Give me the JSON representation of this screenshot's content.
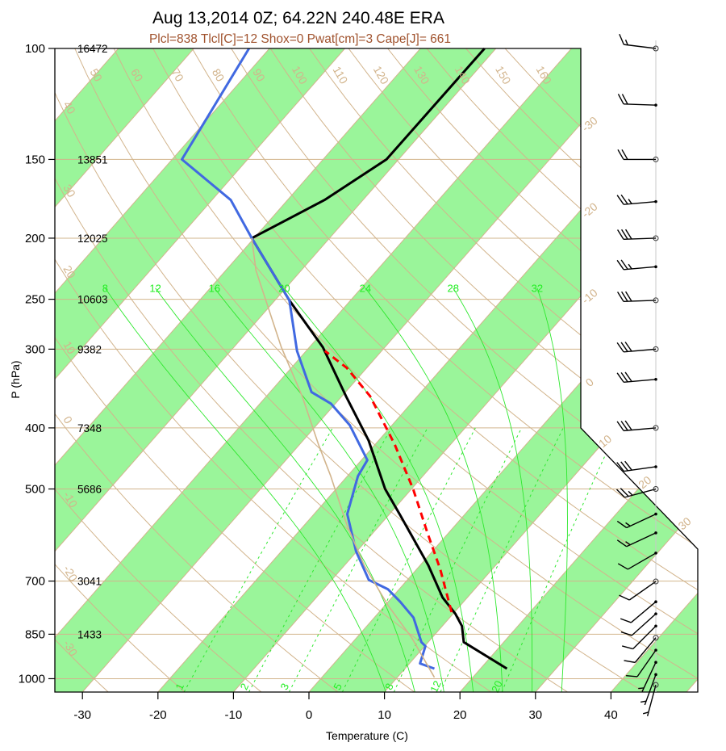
{
  "title": "Aug 13,2014 0Z; 64.22N 240.48E ERA",
  "subtitle": "Plcl=838 Tlcl[C]=12 Shox=0 Pwat[cm]=3 Cape[J]= 661",
  "colors": {
    "band": "#9af59a",
    "tan": "#d2b48c",
    "moist": "#2ee82e",
    "temp": "#000000",
    "dew": "#4169e1",
    "parcel": "#ff0000",
    "env2": "#d2b48c"
  },
  "chart_data": {
    "type": "line",
    "title": "Aug 13,2014 0Z; 64.22N 240.48E ERA",
    "xlabel": "Temperature (C)",
    "ylabel": "P (hPa)",
    "xlim": [
      -33.6,
      51.5
    ],
    "ylim": [
      1050,
      100
    ],
    "x_ticks": [
      "-30",
      "-20",
      "-10",
      "0",
      "10",
      "20",
      "30",
      "40"
    ],
    "x_tick_values": [
      -30,
      -20,
      -10,
      0,
      10,
      20,
      30,
      40
    ],
    "pressure_levels": [
      {
        "p": 100,
        "label": "100",
        "height": "16472"
      },
      {
        "p": 150,
        "label": "150",
        "height": "13851"
      },
      {
        "p": 200,
        "label": "200",
        "height": "12025"
      },
      {
        "p": 250,
        "label": "250",
        "height": "10603"
      },
      {
        "p": 300,
        "label": "300",
        "height": "9382"
      },
      {
        "p": 400,
        "label": "400",
        "height": "7348"
      },
      {
        "p": 500,
        "label": "500",
        "height": "5686"
      },
      {
        "p": 700,
        "label": "700",
        "height": "3041"
      },
      {
        "p": 850,
        "label": "850",
        "height": "1433"
      },
      {
        "p": 1000,
        "label": "1000",
        "height": ""
      }
    ],
    "series": [
      {
        "name": "temperature",
        "color": "#000000",
        "points": [
          [
            964,
            23.5
          ],
          [
            875,
            14.7
          ],
          [
            825,
            12.6
          ],
          [
            789,
            10.3
          ],
          [
            743,
            6.7
          ],
          [
            661,
            1.1
          ],
          [
            553,
            -8.2
          ],
          [
            500,
            -13.5
          ],
          [
            419,
            -21.3
          ],
          [
            356,
            -29.5
          ],
          [
            298,
            -38.2
          ],
          [
            251,
            -48.1
          ],
          [
            200,
            -60.3
          ],
          [
            174,
            -55.1
          ],
          [
            150,
            -51.6
          ],
          [
            100,
            -51.5
          ]
        ]
      },
      {
        "name": "dewpoint",
        "color": "#4169e1",
        "points": [
          [
            964,
            13.9
          ],
          [
            946,
            11.4
          ],
          [
            888,
            10.1
          ],
          [
            875,
            9.1
          ],
          [
            800,
            5.2
          ],
          [
            755,
            1.6
          ],
          [
            721,
            -1.5
          ],
          [
            697,
            -5.1
          ],
          [
            628,
            -10.1
          ],
          [
            548,
            -15.6
          ],
          [
            477,
            -18.6
          ],
          [
            450,
            -19.2
          ],
          [
            396,
            -25.6
          ],
          [
            366,
            -30.6
          ],
          [
            351,
            -34.5
          ],
          [
            302,
            -41.2
          ],
          [
            251,
            -48.1
          ],
          [
            200,
            -60.3
          ],
          [
            174,
            -67.5
          ],
          [
            150,
            -78.7
          ],
          [
            100,
            -82.7
          ]
        ]
      },
      {
        "name": "parcel",
        "color": "#ff0000",
        "dashed": true,
        "points": [
          [
            784,
            9.6
          ],
          [
            670,
            3.1
          ],
          [
            587,
            -2.8
          ],
          [
            500,
            -9.8
          ],
          [
            425,
            -17.4
          ],
          [
            356,
            -26.3
          ],
          [
            321,
            -32.7
          ],
          [
            302,
            -37.5
          ]
        ]
      },
      {
        "name": "virtual-reference",
        "color": "#d2b48c",
        "points": [
          [
            995,
            14.9
          ],
          [
            861,
            7.3
          ],
          [
            765,
            0.4
          ],
          [
            661,
            -7.4
          ],
          [
            570,
            -14.4
          ],
          [
            477,
            -22.2
          ],
          [
            425,
            -27.5
          ],
          [
            356,
            -35.3
          ],
          [
            298,
            -43.7
          ],
          [
            225,
            -56.0
          ],
          [
            200,
            -60.3
          ]
        ]
      }
    ],
    "dry_adiabats_C": [
      -30,
      -20,
      -10,
      0,
      10,
      20,
      30,
      40,
      50,
      60,
      70,
      80,
      90,
      100,
      110,
      120,
      130,
      140,
      150,
      160
    ],
    "dry_adiabat_labels_top": [
      "50",
      "60",
      "70",
      "80",
      "90",
      "100",
      "110",
      "120",
      "130",
      "140",
      "150",
      "160"
    ],
    "dry_adiabat_labels_left": [
      "40",
      "30",
      "20",
      "10",
      "0",
      "-10",
      "-20",
      "-30"
    ],
    "moist_adiabats_C": [
      8,
      12,
      16,
      20,
      24,
      28,
      32
    ],
    "moist_adiabat_labels": [
      "8",
      "12",
      "16",
      "20",
      "24",
      "28",
      "32"
    ],
    "mixing_ratios_gkg": [
      1,
      2,
      3,
      5,
      8,
      12,
      20
    ],
    "mixing_ratio_labels": [
      "1",
      "2",
      "3",
      "5",
      "8",
      "12",
      "20"
    ],
    "isotherm_labels": [
      {
        "t": -30,
        "label": "-30"
      },
      {
        "t": -20,
        "label": "-20"
      },
      {
        "t": -10,
        "label": "-10"
      },
      {
        "t": 0,
        "label": "0"
      },
      {
        "t": 10,
        "label": "10"
      },
      {
        "t": 20,
        "label": "20"
      },
      {
        "t": 30,
        "label": "30"
      }
    ],
    "winds": [
      {
        "p": 100,
        "dir": 277,
        "kt": 15
      },
      {
        "p": 123,
        "dir": 272,
        "kt": 20
      },
      {
        "p": 150,
        "dir": 270,
        "kt": 20
      },
      {
        "p": 175,
        "dir": 265,
        "kt": 25
      },
      {
        "p": 200,
        "dir": 268,
        "kt": 30
      },
      {
        "p": 222,
        "dir": 265,
        "kt": 25
      },
      {
        "p": 251,
        "dir": 268,
        "kt": 30
      },
      {
        "p": 300,
        "dir": 265,
        "kt": 30
      },
      {
        "p": 335,
        "dir": 265,
        "kt": 30
      },
      {
        "p": 400,
        "dir": 265,
        "kt": 30
      },
      {
        "p": 461,
        "dir": 262,
        "kt": 30
      },
      {
        "p": 500,
        "dir": 255,
        "kt": 25
      },
      {
        "p": 548,
        "dir": 245,
        "kt": 15
      },
      {
        "p": 587,
        "dir": 245,
        "kt": 15
      },
      {
        "p": 632,
        "dir": 240,
        "kt": 10
      },
      {
        "p": 701,
        "dir": 235,
        "kt": 10
      },
      {
        "p": 755,
        "dir": 230,
        "kt": 10
      },
      {
        "p": 789,
        "dir": 228,
        "kt": 10
      },
      {
        "p": 825,
        "dir": 225,
        "kt": 10
      },
      {
        "p": 861,
        "dir": 220,
        "kt": 10
      },
      {
        "p": 901,
        "dir": 215,
        "kt": 10
      },
      {
        "p": 942,
        "dir": 205,
        "kt": 5
      },
      {
        "p": 985,
        "dir": 200,
        "kt": 5
      },
      {
        "p": 1023,
        "dir": 195,
        "kt": 5
      }
    ]
  }
}
